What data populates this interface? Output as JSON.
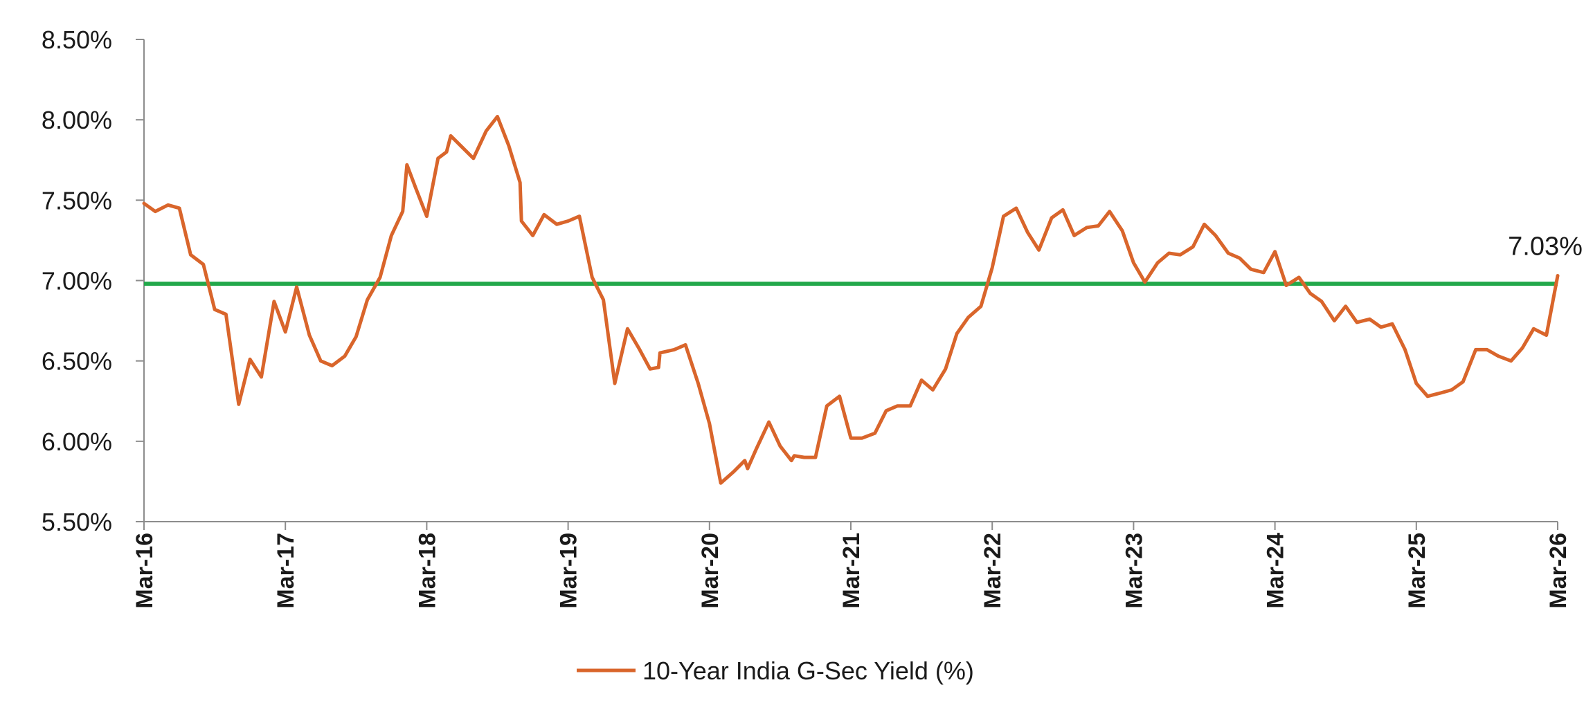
{
  "chart_data": {
    "type": "line",
    "title": "",
    "xlabel": "",
    "ylabel": "",
    "ylim": [
      5.5,
      8.5
    ],
    "y_ticks": [
      5.5,
      6.0,
      6.5,
      7.0,
      7.5,
      8.0,
      8.5
    ],
    "y_tick_labels": [
      "5.50%",
      "6.00%",
      "6.50%",
      "7.00%",
      "7.50%",
      "8.00%",
      "8.50%"
    ],
    "x_ticks": [
      "Mar-16",
      "Mar-17",
      "Mar-18",
      "Mar-19",
      "Mar-20",
      "Mar-21",
      "Mar-22",
      "Mar-23",
      "Mar-24",
      "Mar-25",
      "Mar-26"
    ],
    "grid": false,
    "legend_position": "bottom",
    "reference_line": {
      "value": 6.98,
      "color": "#22a84a"
    },
    "end_annotation": "7.03%",
    "series": [
      {
        "name": "10-Year India G-Sec Yield (%)",
        "color": "#d9652b",
        "points": [
          [
            2016.0,
            7.48
          ],
          [
            2016.08,
            7.43
          ],
          [
            2016.17,
            7.47
          ],
          [
            2016.25,
            7.45
          ],
          [
            2016.33,
            7.16
          ],
          [
            2016.42,
            7.1
          ],
          [
            2016.5,
            6.82
          ],
          [
            2016.58,
            6.79
          ],
          [
            2016.67,
            6.23
          ],
          [
            2016.75,
            6.51
          ],
          [
            2016.83,
            6.4
          ],
          [
            2016.92,
            6.87
          ],
          [
            2017.0,
            6.68
          ],
          [
            2017.08,
            6.96
          ],
          [
            2017.17,
            6.66
          ],
          [
            2017.25,
            6.5
          ],
          [
            2017.33,
            6.47
          ],
          [
            2017.42,
            6.53
          ],
          [
            2017.5,
            6.65
          ],
          [
            2017.58,
            6.88
          ],
          [
            2017.67,
            7.02
          ],
          [
            2017.75,
            7.28
          ],
          [
            2017.83,
            7.43
          ],
          [
            2017.86,
            7.72
          ],
          [
            2017.92,
            7.58
          ],
          [
            2018.0,
            7.4
          ],
          [
            2018.08,
            7.76
          ],
          [
            2018.14,
            7.8
          ],
          [
            2018.17,
            7.9
          ],
          [
            2018.25,
            7.83
          ],
          [
            2018.33,
            7.76
          ],
          [
            2018.42,
            7.93
          ],
          [
            2018.5,
            8.02
          ],
          [
            2018.58,
            7.84
          ],
          [
            2018.66,
            7.61
          ],
          [
            2018.67,
            7.37
          ],
          [
            2018.75,
            7.28
          ],
          [
            2018.83,
            7.41
          ],
          [
            2018.92,
            7.35
          ],
          [
            2019.0,
            7.37
          ],
          [
            2019.08,
            7.4
          ],
          [
            2019.17,
            7.02
          ],
          [
            2019.25,
            6.88
          ],
          [
            2019.33,
            6.36
          ],
          [
            2019.42,
            6.7
          ],
          [
            2019.5,
            6.58
          ],
          [
            2019.58,
            6.45
          ],
          [
            2019.64,
            6.46
          ],
          [
            2019.65,
            6.55
          ],
          [
            2019.75,
            6.57
          ],
          [
            2019.83,
            6.6
          ],
          [
            2019.92,
            6.36
          ],
          [
            2020.0,
            6.11
          ],
          [
            2020.08,
            5.74
          ],
          [
            2020.17,
            5.81
          ],
          [
            2020.25,
            5.88
          ],
          [
            2020.27,
            5.83
          ],
          [
            2020.33,
            5.95
          ],
          [
            2020.42,
            6.12
          ],
          [
            2020.5,
            5.97
          ],
          [
            2020.58,
            5.88
          ],
          [
            2020.6,
            5.91
          ],
          [
            2020.67,
            5.9
          ],
          [
            2020.75,
            5.9
          ],
          [
            2020.83,
            6.22
          ],
          [
            2020.92,
            6.28
          ],
          [
            2021.0,
            6.02
          ],
          [
            2021.08,
            6.02
          ],
          [
            2021.17,
            6.05
          ],
          [
            2021.25,
            6.19
          ],
          [
            2021.33,
            6.22
          ],
          [
            2021.42,
            6.22
          ],
          [
            2021.5,
            6.38
          ],
          [
            2021.58,
            6.32
          ],
          [
            2021.67,
            6.45
          ],
          [
            2021.75,
            6.67
          ],
          [
            2021.83,
            6.77
          ],
          [
            2021.92,
            6.84
          ],
          [
            2022.0,
            7.08
          ],
          [
            2022.08,
            7.4
          ],
          [
            2022.17,
            7.45
          ],
          [
            2022.25,
            7.3
          ],
          [
            2022.33,
            7.19
          ],
          [
            2022.42,
            7.39
          ],
          [
            2022.5,
            7.44
          ],
          [
            2022.58,
            7.28
          ],
          [
            2022.67,
            7.33
          ],
          [
            2022.75,
            7.34
          ],
          [
            2022.83,
            7.43
          ],
          [
            2022.92,
            7.31
          ],
          [
            2023.0,
            7.11
          ],
          [
            2023.08,
            6.99
          ],
          [
            2023.17,
            7.11
          ],
          [
            2023.25,
            7.17
          ],
          [
            2023.33,
            7.16
          ],
          [
            2023.42,
            7.21
          ],
          [
            2023.5,
            7.35
          ],
          [
            2023.58,
            7.28
          ],
          [
            2023.67,
            7.17
          ],
          [
            2023.75,
            7.14
          ],
          [
            2023.83,
            7.07
          ],
          [
            2023.92,
            7.05
          ],
          [
            2024.0,
            7.18
          ],
          [
            2024.08,
            6.97
          ],
          [
            2024.17,
            7.02
          ],
          [
            2024.25,
            6.92
          ],
          [
            2024.33,
            6.87
          ],
          [
            2024.42,
            6.75
          ],
          [
            2024.5,
            6.84
          ],
          [
            2024.58,
            6.74
          ],
          [
            2024.67,
            6.76
          ],
          [
            2024.75,
            6.71
          ],
          [
            2024.83,
            6.73
          ],
          [
            2024.92,
            6.57
          ],
          [
            2025.0,
            6.36
          ],
          [
            2025.08,
            6.28
          ],
          [
            2025.17,
            6.3
          ],
          [
            2025.25,
            6.32
          ],
          [
            2025.33,
            6.37
          ],
          [
            2025.42,
            6.57
          ],
          [
            2025.5,
            6.57
          ],
          [
            2025.58,
            6.53
          ],
          [
            2025.67,
            6.5
          ],
          [
            2025.75,
            6.58
          ],
          [
            2025.83,
            6.7
          ],
          [
            2025.92,
            6.66
          ],
          [
            2026.0,
            7.03
          ]
        ]
      }
    ]
  }
}
